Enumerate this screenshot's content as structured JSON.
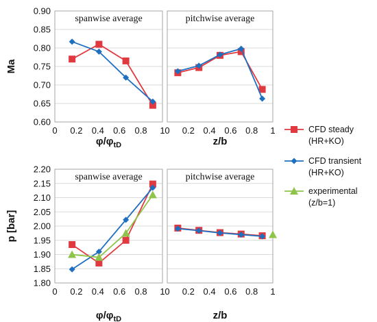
{
  "colors": {
    "cfd_steady": "#e0393f",
    "cfd_transient": "#1f6fc0",
    "experimental": "#8fc44a",
    "grid": "#d9d9d9",
    "frame": "#a6a6a6"
  },
  "legend": [
    {
      "key": "cfd_steady",
      "line1": "CFD steady",
      "line2": "(HR+KO)",
      "marker": "square"
    },
    {
      "key": "cfd_transient",
      "line1": "CFD transient",
      "line2": "(HR+KO)",
      "marker": "diamond"
    },
    {
      "key": "experimental",
      "line1": "experimental",
      "line2": "(z/b=1)",
      "marker": "triangle"
    }
  ],
  "row_labels": {
    "top": "Ma",
    "bottom": "p [bar]"
  },
  "chart_data": [
    {
      "type": "line",
      "title": "spanwise average",
      "xlabel": "φ/φtD",
      "ylabel": "Ma",
      "xlim": [
        0,
        1
      ],
      "ylim": [
        0.6,
        0.9
      ],
      "xticks": [
        "0",
        "0.2",
        "0.4",
        "0.6",
        "0.8",
        "1"
      ],
      "yticks": [
        "0.60",
        "0.65",
        "0.70",
        "0.75",
        "0.80",
        "0.85",
        "0.90"
      ],
      "grid": true,
      "series": [
        {
          "name": "CFD steady (HR+KO)",
          "key": "cfd_steady",
          "marker": "square",
          "x": [
            0.16,
            0.41,
            0.66,
            0.91
          ],
          "values": [
            0.77,
            0.81,
            0.765,
            0.645
          ]
        },
        {
          "name": "CFD transient (HR+KO)",
          "key": "cfd_transient",
          "marker": "diamond",
          "x": [
            0.16,
            0.41,
            0.66,
            0.91
          ],
          "values": [
            0.817,
            0.79,
            0.72,
            0.655
          ]
        }
      ]
    },
    {
      "type": "line",
      "title": "pitchwise average",
      "xlabel": "z/b",
      "xlim": [
        0,
        1
      ],
      "ylim": [
        0.6,
        0.9
      ],
      "xticks": [
        "0",
        "0.2",
        "0.4",
        "0.6",
        "0.8",
        "1"
      ],
      "grid": true,
      "series": [
        {
          "name": "CFD steady (HR+KO)",
          "key": "cfd_steady",
          "marker": "square",
          "x": [
            0.1,
            0.3,
            0.5,
            0.7,
            0.9
          ],
          "values": [
            0.733,
            0.747,
            0.78,
            0.79,
            0.688
          ]
        },
        {
          "name": "CFD transient (HR+KO)",
          "key": "cfd_transient",
          "marker": "diamond",
          "x": [
            0.1,
            0.3,
            0.5,
            0.7,
            0.9
          ],
          "values": [
            0.737,
            0.752,
            0.782,
            0.798,
            0.663
          ]
        }
      ]
    },
    {
      "type": "line",
      "title": "spanwise average",
      "xlabel": "φ/φtD",
      "ylabel": "p [bar]",
      "xlim": [
        0,
        1
      ],
      "ylim": [
        1.8,
        2.2
      ],
      "xticks": [
        "0",
        "0.2",
        "0.4",
        "0.6",
        "0.8",
        "1"
      ],
      "yticks": [
        "1.80",
        "1.85",
        "1.90",
        "1.95",
        "2.00",
        "2.05",
        "2.10",
        "2.15",
        "2.20"
      ],
      "grid": true,
      "series": [
        {
          "name": "CFD steady (HR+KO)",
          "key": "cfd_steady",
          "marker": "square",
          "x": [
            0.16,
            0.41,
            0.66,
            0.91
          ],
          "values": [
            1.935,
            1.87,
            1.95,
            2.148
          ]
        },
        {
          "name": "CFD transient (HR+KO)",
          "key": "cfd_transient",
          "marker": "diamond",
          "x": [
            0.16,
            0.41,
            0.66,
            0.91
          ],
          "values": [
            1.848,
            1.91,
            2.022,
            2.135
          ]
        },
        {
          "name": "experimental (z/b=1)",
          "key": "experimental",
          "marker": "triangle",
          "x": [
            0.16,
            0.41,
            0.66,
            0.91
          ],
          "values": [
            1.9,
            1.89,
            1.975,
            2.11
          ]
        }
      ]
    },
    {
      "type": "line",
      "title": "pitchwise average",
      "xlabel": "z/b",
      "xlim": [
        0,
        1
      ],
      "ylim": [
        1.8,
        2.2
      ],
      "xticks": [
        "0",
        "0.2",
        "0.4",
        "0.6",
        "0.8",
        "1"
      ],
      "grid": true,
      "series": [
        {
          "name": "CFD steady (HR+KO)",
          "key": "cfd_steady",
          "marker": "square",
          "x": [
            0.1,
            0.3,
            0.5,
            0.7,
            0.9
          ],
          "values": [
            1.993,
            1.985,
            1.977,
            1.972,
            1.966
          ]
        },
        {
          "name": "CFD transient (HR+KO)",
          "key": "cfd_transient",
          "marker": "diamond",
          "x": [
            0.1,
            0.3,
            0.5,
            0.7,
            0.9
          ],
          "values": [
            1.991,
            1.984,
            1.976,
            1.97,
            1.964
          ]
        },
        {
          "name": "experimental (z/b=1)",
          "key": "experimental",
          "marker": "triangle",
          "x": [
            1.0
          ],
          "values": [
            1.97
          ]
        }
      ]
    }
  ]
}
